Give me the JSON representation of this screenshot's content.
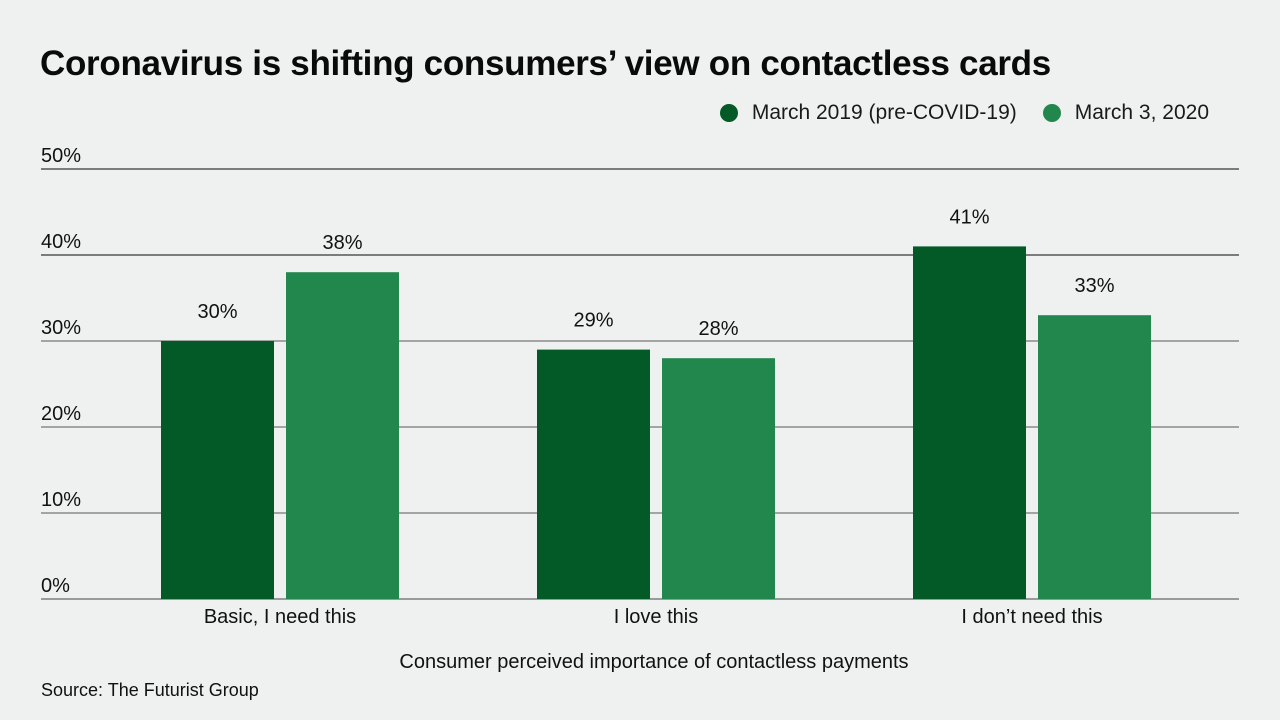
{
  "chart_data": {
    "type": "bar",
    "title": "Coronavirus is shifting consumers’ view on contactless cards",
    "xlabel": "Consumer perceived importance of contactless payments",
    "ylabel": "",
    "ylim": [
      0,
      50
    ],
    "yticks": [
      0,
      10,
      20,
      30,
      40,
      50
    ],
    "ytick_labels": [
      "0%",
      "10%",
      "20%",
      "30%",
      "40%",
      "50%"
    ],
    "grid": true,
    "legend_position": "top-right",
    "categories": [
      "Basic, I need this",
      "I love this",
      "I don’t need this"
    ],
    "series": [
      {
        "name": "March 2019 (pre-COVID-19)",
        "color": "#035a26",
        "values": [
          30,
          29,
          41
        ],
        "labels": [
          "30%",
          "29%",
          "41%"
        ]
      },
      {
        "name": "March 3, 2020",
        "color": "#22874c",
        "values": [
          38,
          28,
          33
        ],
        "labels": [
          "38%",
          "28%",
          "33%"
        ]
      }
    ],
    "source": "Source: The Futurist Group"
  }
}
